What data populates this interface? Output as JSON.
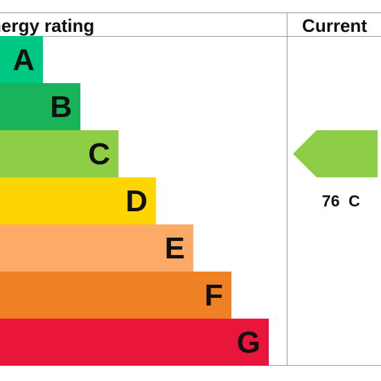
{
  "chart_data": {
    "type": "bar",
    "title": "",
    "columns": {
      "left_header": "nergy rating",
      "right_header": "Current"
    },
    "categories": [
      "A",
      "B",
      "C",
      "D",
      "E",
      "F",
      "G"
    ],
    "band_colors": [
      "#00c781",
      "#19b459",
      "#8dce46",
      "#ffd500",
      "#fcaa65",
      "#ef8023",
      "#e9153b"
    ],
    "current": {
      "value": 76,
      "band": "C",
      "color": "#8dce46"
    }
  }
}
